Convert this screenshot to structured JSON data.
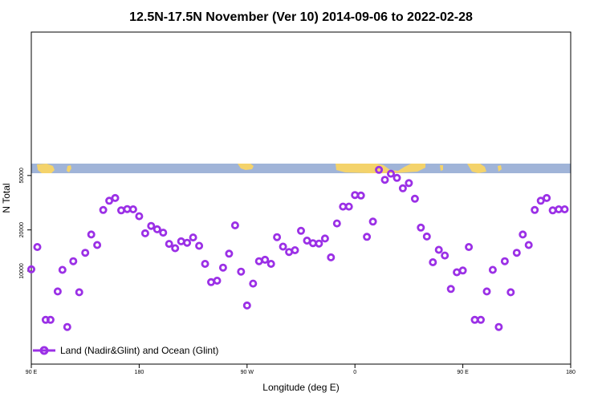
{
  "chart_data": {
    "type": "scatter",
    "title": "12.5N-17.5N November (Ver 10)   2014-09-06 to 2022-02-28",
    "xlabel": "Longitude (deg E)",
    "ylabel": "N Total",
    "x_tick_labels": [
      "90 E",
      "180",
      "90 W",
      "0",
      "90 E",
      "180"
    ],
    "y_tick_labels": [
      "10000",
      "20000",
      "50000"
    ],
    "y_scale": "log",
    "grid": false,
    "legend": {
      "position": "bottom-left",
      "entries": [
        "Land (Nadir&Glint) and Ocean (Glint)"
      ]
    },
    "colors": {
      "points": "#9b30e6",
      "ocean": "#a0b4d8",
      "land": "#f4d36b"
    },
    "series": [
      {
        "name": "Land (Nadir&Glint) and Ocean (Glint)",
        "points": [
          [
            90,
            10300
          ],
          [
            95,
            15000
          ],
          [
            102,
            4400
          ],
          [
            106,
            4400
          ],
          [
            112,
            7100
          ],
          [
            116,
            10200
          ],
          [
            120,
            3900
          ],
          [
            125,
            11800
          ],
          [
            130,
            7000
          ],
          [
            135,
            13600
          ],
          [
            140,
            18500
          ],
          [
            145,
            15500
          ],
          [
            150,
            28000
          ],
          [
            155,
            32700
          ],
          [
            160,
            34200
          ],
          [
            165,
            27800
          ],
          [
            170,
            28400
          ],
          [
            175,
            28300
          ],
          [
            180,
            25200
          ],
          [
            185,
            18900
          ],
          [
            190,
            21400
          ],
          [
            195,
            20200
          ],
          [
            200,
            19100
          ],
          [
            205,
            15800
          ],
          [
            210,
            14700
          ],
          [
            215,
            16500
          ],
          [
            220,
            16100
          ],
          [
            225,
            17600
          ],
          [
            230,
            15300
          ],
          [
            235,
            11300
          ],
          [
            240,
            8300
          ],
          [
            245,
            8500
          ],
          [
            250,
            10600
          ],
          [
            255,
            13400
          ],
          [
            260,
            21600
          ],
          [
            265,
            9900
          ],
          [
            270,
            5600
          ],
          [
            275,
            8100
          ],
          [
            280,
            11800
          ],
          [
            285,
            12100
          ],
          [
            290,
            11300
          ],
          [
            295,
            17700
          ],
          [
            300,
            15100
          ],
          [
            305,
            13800
          ],
          [
            310,
            14200
          ],
          [
            315,
            19700
          ],
          [
            320,
            16700
          ],
          [
            325,
            16000
          ],
          [
            330,
            15900
          ],
          [
            335,
            17300
          ],
          [
            340,
            12600
          ],
          [
            345,
            22300
          ],
          [
            350,
            29600
          ],
          [
            355,
            29600
          ],
          [
            360,
            36000
          ],
          [
            365,
            35700
          ],
          [
            370,
            17800
          ],
          [
            375,
            23000
          ],
          [
            380,
            55000
          ],
          [
            385,
            46500
          ],
          [
            390,
            51500
          ],
          [
            395,
            48000
          ],
          [
            400,
            40300
          ],
          [
            405,
            44000
          ],
          [
            410,
            33800
          ],
          [
            415,
            20800
          ],
          [
            420,
            17900
          ],
          [
            425,
            11600
          ],
          [
            430,
            14300
          ],
          [
            435,
            13000
          ],
          [
            440,
            7400
          ],
          [
            445,
            9800
          ],
          [
            450,
            10100
          ],
          [
            455,
            15000
          ],
          [
            460,
            4400
          ],
          [
            465,
            4400
          ],
          [
            470,
            7100
          ],
          [
            475,
            10200
          ],
          [
            480,
            3900
          ],
          [
            485,
            11800
          ],
          [
            490,
            7000
          ],
          [
            495,
            13600
          ],
          [
            500,
            18500
          ],
          [
            505,
            15500
          ],
          [
            510,
            28000
          ],
          [
            515,
            32700
          ],
          [
            520,
            34200
          ],
          [
            525,
            27800
          ],
          [
            530,
            28300
          ],
          [
            535,
            28300
          ]
        ]
      }
    ]
  }
}
